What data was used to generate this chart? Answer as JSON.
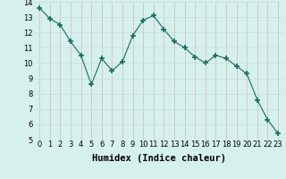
{
  "x": [
    0,
    1,
    2,
    3,
    4,
    5,
    6,
    7,
    8,
    9,
    10,
    11,
    12,
    13,
    14,
    15,
    16,
    17,
    18,
    19,
    20,
    21,
    22,
    23
  ],
  "y": [
    13.6,
    12.9,
    12.5,
    11.4,
    10.5,
    8.6,
    10.3,
    9.5,
    10.1,
    11.8,
    12.8,
    13.1,
    12.2,
    11.4,
    11.0,
    10.4,
    10.0,
    10.5,
    10.3,
    9.8,
    9.3,
    7.6,
    6.3,
    5.4
  ],
  "line_color": "#1a6b5e",
  "marker": "+",
  "marker_color": "#1a6b5e",
  "bg_color": "#d6f0ee",
  "grid_color_major": "#c8e8e4",
  "grid_color_minor": "#e0f4f2",
  "xlabel": "Humidex (Indice chaleur)",
  "ylim": [
    5,
    14
  ],
  "xlim": [
    -0.5,
    23.5
  ],
  "yticks": [
    5,
    6,
    7,
    8,
    9,
    10,
    11,
    12,
    13,
    14
  ],
  "xticks": [
    0,
    1,
    2,
    3,
    4,
    5,
    6,
    7,
    8,
    9,
    10,
    11,
    12,
    13,
    14,
    15,
    16,
    17,
    18,
    19,
    20,
    21,
    22,
    23
  ],
  "tick_label_fontsize": 6,
  "xlabel_fontsize": 7.5
}
